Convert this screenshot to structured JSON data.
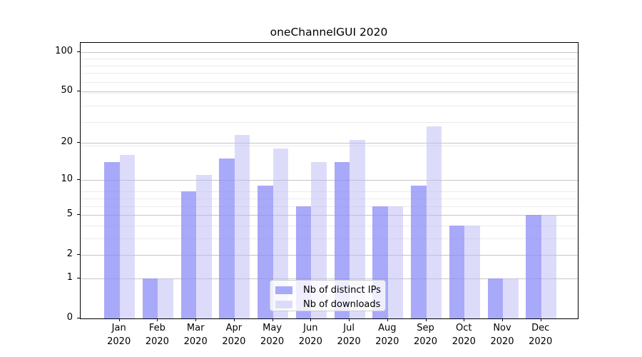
{
  "title": "oneChannelGUI 2020",
  "chart_data": {
    "type": "bar",
    "title": "oneChannelGUI 2020",
    "categories": [
      "Jan",
      "Feb",
      "Mar",
      "Apr",
      "May",
      "Jun",
      "Jul",
      "Aug",
      "Sep",
      "Oct",
      "Nov",
      "Dec"
    ],
    "x_label_line2": "2020",
    "series": [
      {
        "name": "Nb of distinct IPs",
        "color": "#a9a9fa",
        "fill": "rgba(140,140,248,0.75)",
        "values": [
          14,
          1,
          8,
          15,
          9,
          6,
          14,
          6,
          9,
          4,
          1,
          5
        ]
      },
      {
        "name": "Nb of downloads",
        "color": "#dcdcfa",
        "fill": "rgba(185,185,245,0.5)",
        "values": [
          16,
          1,
          11,
          23,
          18,
          14,
          21,
          6,
          27,
          4,
          1,
          5
        ]
      }
    ],
    "y_scale": "log10(1+x)",
    "y_tick_values": [
      0,
      1,
      2,
      5,
      10,
      20,
      50,
      100
    ],
    "y_minor_values": [
      3,
      4,
      6,
      7,
      8,
      19,
      29,
      39,
      49,
      59,
      69,
      79,
      89
    ],
    "ylim": [
      0,
      117
    ],
    "grid": true,
    "legend_position": "lower center inside"
  }
}
